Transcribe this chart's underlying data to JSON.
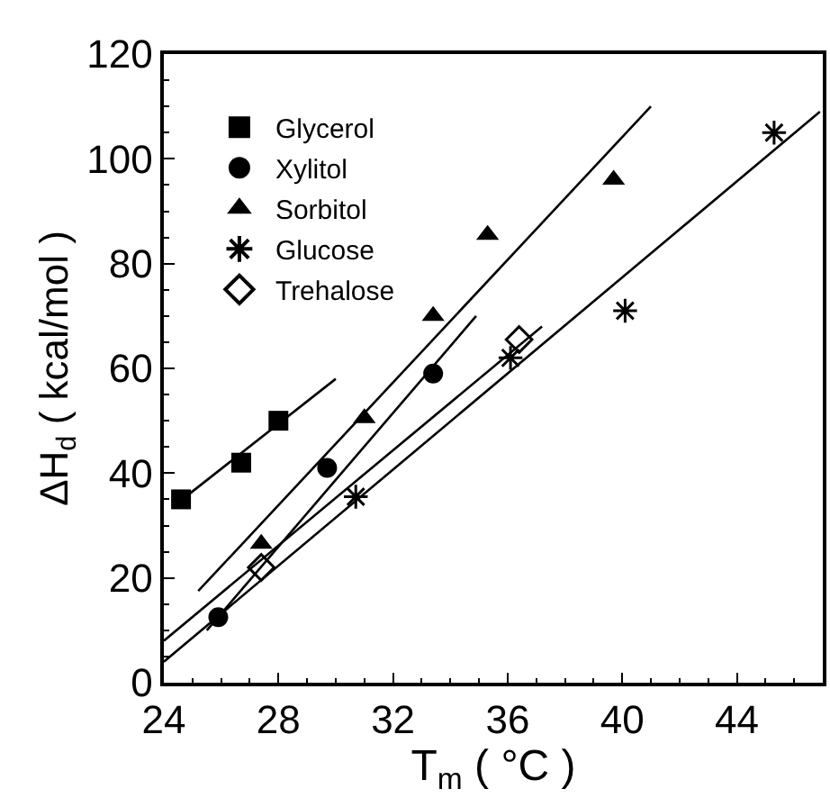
{
  "chart_data": {
    "type": "scatter",
    "xlabel": "T$_{m}$ ( °C )",
    "ylabel": "ΔH$_{d}$ ( kcal/mol )",
    "xlim": [
      24,
      47
    ],
    "xticks": [
      24,
      28,
      32,
      36,
      40,
      44
    ],
    "ylim": [
      0,
      120
    ],
    "yticks": [
      0,
      20,
      40,
      60,
      80,
      100,
      120
    ],
    "legend": "top left",
    "series": [
      {
        "name": "Glycerol",
        "color": "#000000",
        "marker": "square",
        "x": [
          24.6,
          26.7,
          28.0
        ],
        "values": [
          35,
          42,
          50
        ]
      },
      {
        "name": "Xylitol",
        "color": "#000000",
        "marker": "circle",
        "x": [
          25.9,
          29.7,
          33.4
        ],
        "values": [
          12.5,
          41,
          59
        ]
      },
      {
        "name": "Sorbitol",
        "color": "#000000",
        "marker": "triangle",
        "x": [
          27.4,
          31.0,
          33.4,
          35.3,
          39.7
        ],
        "values": [
          26.5,
          50.5,
          70,
          85.5,
          96
        ]
      },
      {
        "name": "Glucose",
        "color": "#000000",
        "marker": "cross",
        "x": [
          30.7,
          36.1,
          40.1,
          45.3
        ],
        "values": [
          35.5,
          62,
          71,
          105
        ]
      },
      {
        "name": "Trehalose",
        "color": "#000000",
        "marker": "diamond",
        "x": [
          27.4,
          36.4
        ],
        "values": [
          22,
          65.5
        ]
      },
      {
        "type": "line",
        "color": "#000000",
        "marker": "none",
        "x": [
          24.3,
          30.0
        ],
        "values": [
          33.5,
          58
        ]
      },
      {
        "type": "line",
        "color": "#000000",
        "marker": "none",
        "x": [
          25.2,
          41.0
        ],
        "values": [
          17.5,
          110
        ]
      },
      {
        "type": "line",
        "color": "#000000",
        "marker": "none",
        "x": [
          25.5,
          34.9
        ],
        "values": [
          10,
          70
        ]
      },
      {
        "type": "line",
        "color": "#000000",
        "marker": "none",
        "x": [
          24.0,
          37.2
        ],
        "values": [
          8,
          68
        ]
      },
      {
        "type": "line",
        "color": "#000000",
        "marker": "none",
        "x": [
          24.0,
          46.9
        ],
        "values": [
          4,
          109
        ]
      }
    ]
  }
}
